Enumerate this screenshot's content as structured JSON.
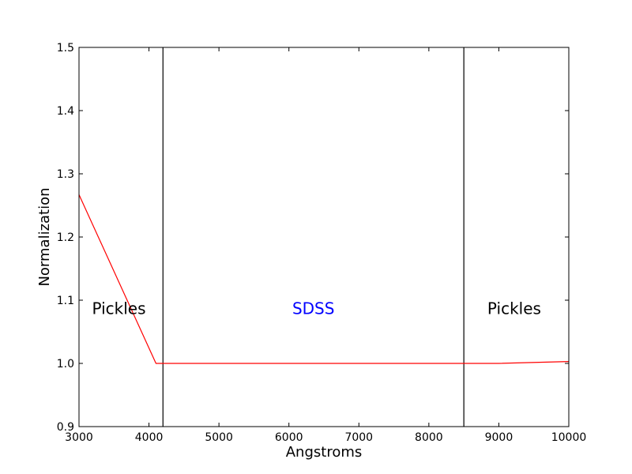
{
  "chart_data": {
    "type": "line",
    "xlabel": "Angstroms",
    "ylabel": "Normalization",
    "xlim": [
      3000,
      10000
    ],
    "ylim": [
      0.9,
      1.5
    ],
    "x_ticks": [
      3000,
      4000,
      5000,
      6000,
      7000,
      8000,
      9000,
      10000
    ],
    "x_tick_labels": [
      "3000",
      "4000",
      "5000",
      "6000",
      "7000",
      "8000",
      "9000",
      "10000"
    ],
    "y_ticks": [
      0.9,
      1.0,
      1.1,
      1.2,
      1.3,
      1.4,
      1.5
    ],
    "y_tick_labels": [
      "0.9",
      "1.0",
      "1.1",
      "1.2",
      "1.3",
      "1.4",
      "1.5"
    ],
    "grid": false,
    "series": [
      {
        "color": "#ff0000",
        "x": [
          3000,
          4100,
          9000,
          10000
        ],
        "y": [
          1.267,
          1.0,
          1.0,
          1.003
        ]
      }
    ],
    "vertical_lines": [
      {
        "x": 4200,
        "color": "#000000"
      },
      {
        "x": 8500,
        "color": "#000000"
      }
    ],
    "annotations": [
      {
        "text": "Pickles",
        "x": 3570,
        "y": 1.087,
        "color": "#000000"
      },
      {
        "text": "SDSS",
        "x": 6350,
        "y": 1.087,
        "color": "#0000ff"
      },
      {
        "text": "Pickles",
        "x": 9220,
        "y": 1.087,
        "color": "#000000"
      }
    ]
  }
}
